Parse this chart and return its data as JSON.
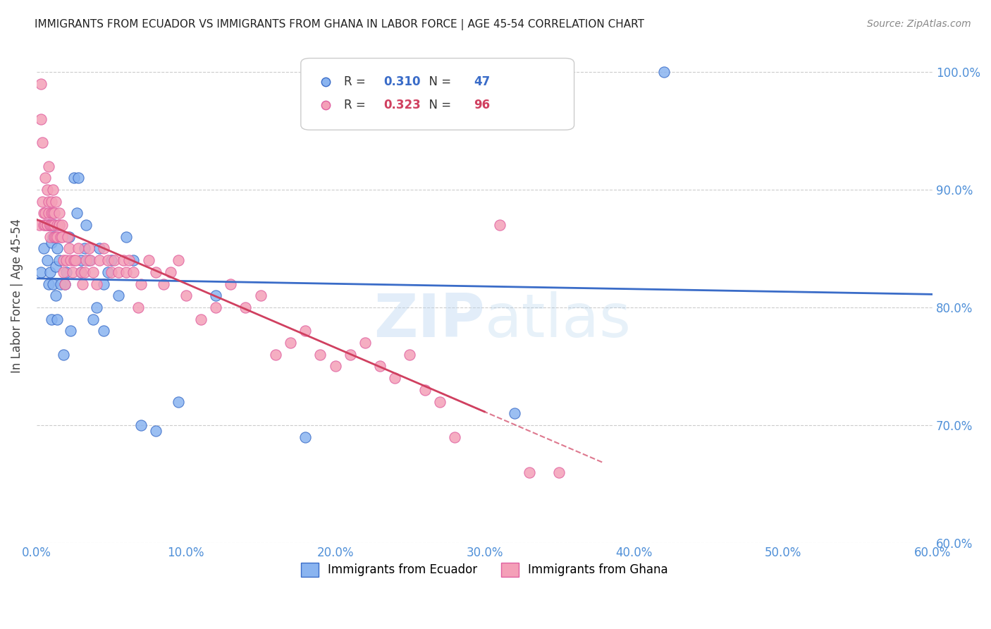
{
  "title": "IMMIGRANTS FROM ECUADOR VS IMMIGRANTS FROM GHANA IN LABOR FORCE | AGE 45-54 CORRELATION CHART",
  "source": "Source: ZipAtlas.com",
  "ylabel": "In Labor Force | Age 45-54",
  "xlim": [
    0.0,
    0.6
  ],
  "ylim": [
    0.6,
    1.02
  ],
  "xticks": [
    0.0,
    0.1,
    0.2,
    0.3,
    0.4,
    0.5,
    0.6
  ],
  "yticks": [
    0.6,
    0.7,
    0.8,
    0.9,
    1.0
  ],
  "ecuador_color": "#8ab4f0",
  "ghana_color": "#f4a0b8",
  "ecuador_line_color": "#3a6cc8",
  "ghana_line_color": "#d04060",
  "R_ecuador": 0.31,
  "N_ecuador": 47,
  "R_ghana": 0.323,
  "N_ghana": 96,
  "legend_ecuador": "Immigrants from Ecuador",
  "legend_ghana": "Immigrants from Ghana",
  "title_color": "#222222",
  "axis_color": "#5090d8",
  "grid_color": "#cccccc",
  "watermark_zip": "ZIP",
  "watermark_atlas": "atlas",
  "ecuador_x": [
    0.003,
    0.005,
    0.007,
    0.008,
    0.008,
    0.009,
    0.01,
    0.01,
    0.011,
    0.011,
    0.012,
    0.013,
    0.013,
    0.014,
    0.014,
    0.015,
    0.016,
    0.018,
    0.019,
    0.02,
    0.022,
    0.023,
    0.025,
    0.027,
    0.028,
    0.03,
    0.03,
    0.032,
    0.033,
    0.035,
    0.038,
    0.04,
    0.042,
    0.045,
    0.045,
    0.048,
    0.05,
    0.055,
    0.06,
    0.065,
    0.07,
    0.08,
    0.095,
    0.12,
    0.18,
    0.32,
    0.42
  ],
  "ecuador_y": [
    0.83,
    0.85,
    0.84,
    0.82,
    0.87,
    0.83,
    0.855,
    0.79,
    0.82,
    0.86,
    0.87,
    0.81,
    0.835,
    0.79,
    0.85,
    0.84,
    0.82,
    0.76,
    0.82,
    0.83,
    0.86,
    0.78,
    0.91,
    0.88,
    0.91,
    0.84,
    0.83,
    0.85,
    0.87,
    0.84,
    0.79,
    0.8,
    0.85,
    0.82,
    0.78,
    0.83,
    0.84,
    0.81,
    0.86,
    0.84,
    0.7,
    0.695,
    0.72,
    0.81,
    0.69,
    0.71,
    1.0
  ],
  "ghana_x": [
    0.002,
    0.003,
    0.003,
    0.004,
    0.004,
    0.005,
    0.005,
    0.006,
    0.006,
    0.006,
    0.007,
    0.007,
    0.007,
    0.008,
    0.008,
    0.008,
    0.009,
    0.009,
    0.009,
    0.01,
    0.01,
    0.01,
    0.011,
    0.011,
    0.011,
    0.012,
    0.012,
    0.012,
    0.013,
    0.013,
    0.014,
    0.014,
    0.015,
    0.015,
    0.015,
    0.016,
    0.017,
    0.017,
    0.018,
    0.018,
    0.019,
    0.02,
    0.021,
    0.022,
    0.023,
    0.024,
    0.025,
    0.026,
    0.028,
    0.03,
    0.031,
    0.032,
    0.033,
    0.035,
    0.036,
    0.038,
    0.04,
    0.042,
    0.045,
    0.048,
    0.05,
    0.052,
    0.055,
    0.058,
    0.06,
    0.062,
    0.065,
    0.068,
    0.07,
    0.075,
    0.08,
    0.085,
    0.09,
    0.095,
    0.1,
    0.11,
    0.12,
    0.13,
    0.14,
    0.15,
    0.16,
    0.17,
    0.18,
    0.19,
    0.2,
    0.21,
    0.22,
    0.23,
    0.24,
    0.25,
    0.26,
    0.27,
    0.28,
    0.31,
    0.33,
    0.35
  ],
  "ghana_y": [
    0.87,
    0.99,
    0.96,
    0.89,
    0.94,
    0.87,
    0.88,
    0.91,
    0.87,
    0.88,
    0.87,
    0.9,
    0.87,
    0.89,
    0.88,
    0.92,
    0.87,
    0.86,
    0.87,
    0.88,
    0.87,
    0.89,
    0.88,
    0.87,
    0.9,
    0.86,
    0.88,
    0.87,
    0.89,
    0.86,
    0.87,
    0.86,
    0.87,
    0.88,
    0.87,
    0.86,
    0.87,
    0.86,
    0.84,
    0.83,
    0.82,
    0.84,
    0.86,
    0.85,
    0.84,
    0.83,
    0.84,
    0.84,
    0.85,
    0.83,
    0.82,
    0.83,
    0.84,
    0.85,
    0.84,
    0.83,
    0.82,
    0.84,
    0.85,
    0.84,
    0.83,
    0.84,
    0.83,
    0.84,
    0.83,
    0.84,
    0.83,
    0.8,
    0.82,
    0.84,
    0.83,
    0.82,
    0.83,
    0.84,
    0.81,
    0.79,
    0.8,
    0.82,
    0.8,
    0.81,
    0.76,
    0.77,
    0.78,
    0.76,
    0.75,
    0.76,
    0.77,
    0.75,
    0.74,
    0.76,
    0.73,
    0.72,
    0.69,
    0.87,
    0.66,
    0.66
  ]
}
